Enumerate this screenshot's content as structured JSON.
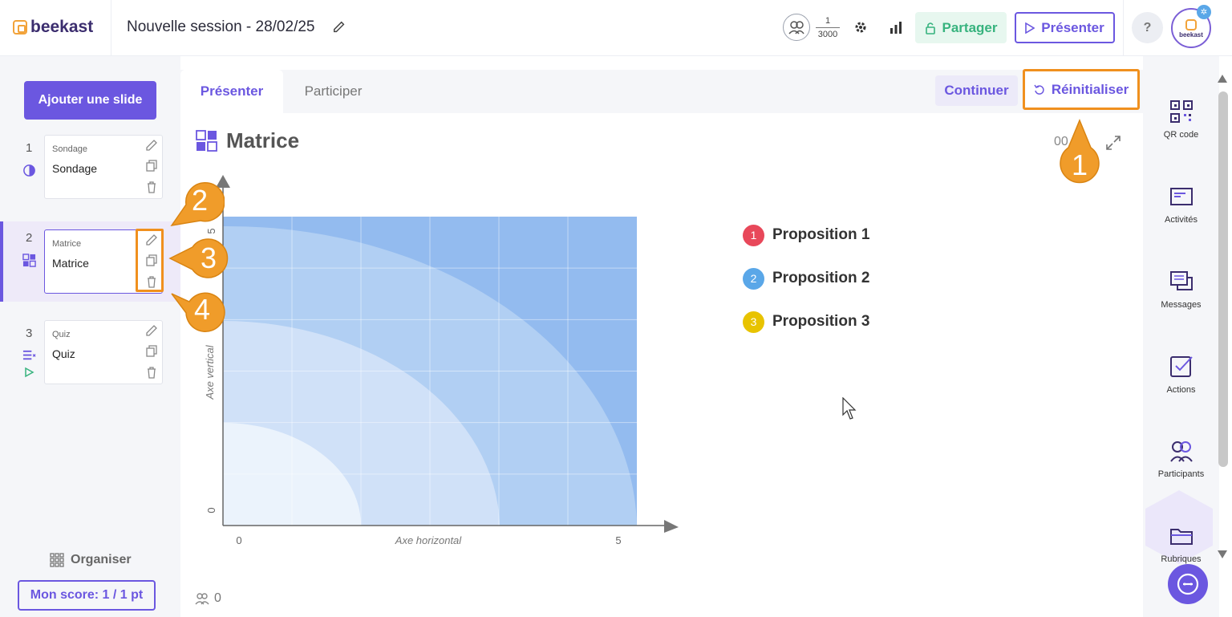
{
  "app": {
    "logo_text": "beekast"
  },
  "header": {
    "session_title": "Nouvelle session - 28/02/25",
    "participants_current": "1",
    "participants_max": "3000",
    "share_label": "Partager",
    "present_label": "Présenter",
    "help_label": "?",
    "avatar_text": "beekast"
  },
  "sidebar": {
    "add_slide_label": "Ajouter une slide",
    "slides": [
      {
        "number": "1",
        "kind": "Sondage",
        "name": "Sondage"
      },
      {
        "number": "2",
        "kind": "Matrice",
        "name": "Matrice"
      },
      {
        "number": "3",
        "kind": "Quiz",
        "name": "Quiz"
      }
    ],
    "organise_label": "Organiser",
    "score_label": "Mon score: 1 / 1 pt"
  },
  "main": {
    "tabs": [
      {
        "label": "Présenter"
      },
      {
        "label": "Participer"
      }
    ],
    "continue_label": "Continuer",
    "reset_label": "Réinitialiser",
    "slide_title": "Matrice",
    "timer": "00",
    "participant_count": "0"
  },
  "chart_data": {
    "type": "heatmap",
    "title": "Matrice",
    "xlabel": "Axe horizontal",
    "ylabel": "Axe vertical",
    "xlim": [
      0,
      5
    ],
    "ylim": [
      0,
      5
    ],
    "x_ticks": [
      "0",
      "5"
    ],
    "y_ticks": [
      "0",
      "5"
    ],
    "series": [
      {
        "name": "Proposition 1",
        "values": []
      },
      {
        "name": "Proposition 2",
        "values": []
      },
      {
        "name": "Proposition 3",
        "values": []
      }
    ]
  },
  "legend": [
    {
      "index": "1",
      "label": "Proposition 1",
      "color": "#e8485a"
    },
    {
      "index": "2",
      "label": "Proposition 2",
      "color": "#5aa7e8"
    },
    {
      "index": "3",
      "label": "Proposition 3",
      "color": "#e8c300"
    }
  ],
  "right_toolbar": [
    {
      "label": "QR code",
      "icon": "qr-code-icon"
    },
    {
      "label": "Activités",
      "icon": "activities-icon"
    },
    {
      "label": "Messages",
      "icon": "messages-icon"
    },
    {
      "label": "Actions",
      "icon": "actions-icon"
    },
    {
      "label": "Participants",
      "icon": "participants-icon"
    },
    {
      "label": "Rubriques",
      "icon": "folder-icon"
    }
  ],
  "callouts": [
    "1",
    "2",
    "3",
    "4"
  ],
  "colors": {
    "accent": "#6b57e0",
    "highlight": "#f0901e",
    "share": "#37b37e"
  }
}
